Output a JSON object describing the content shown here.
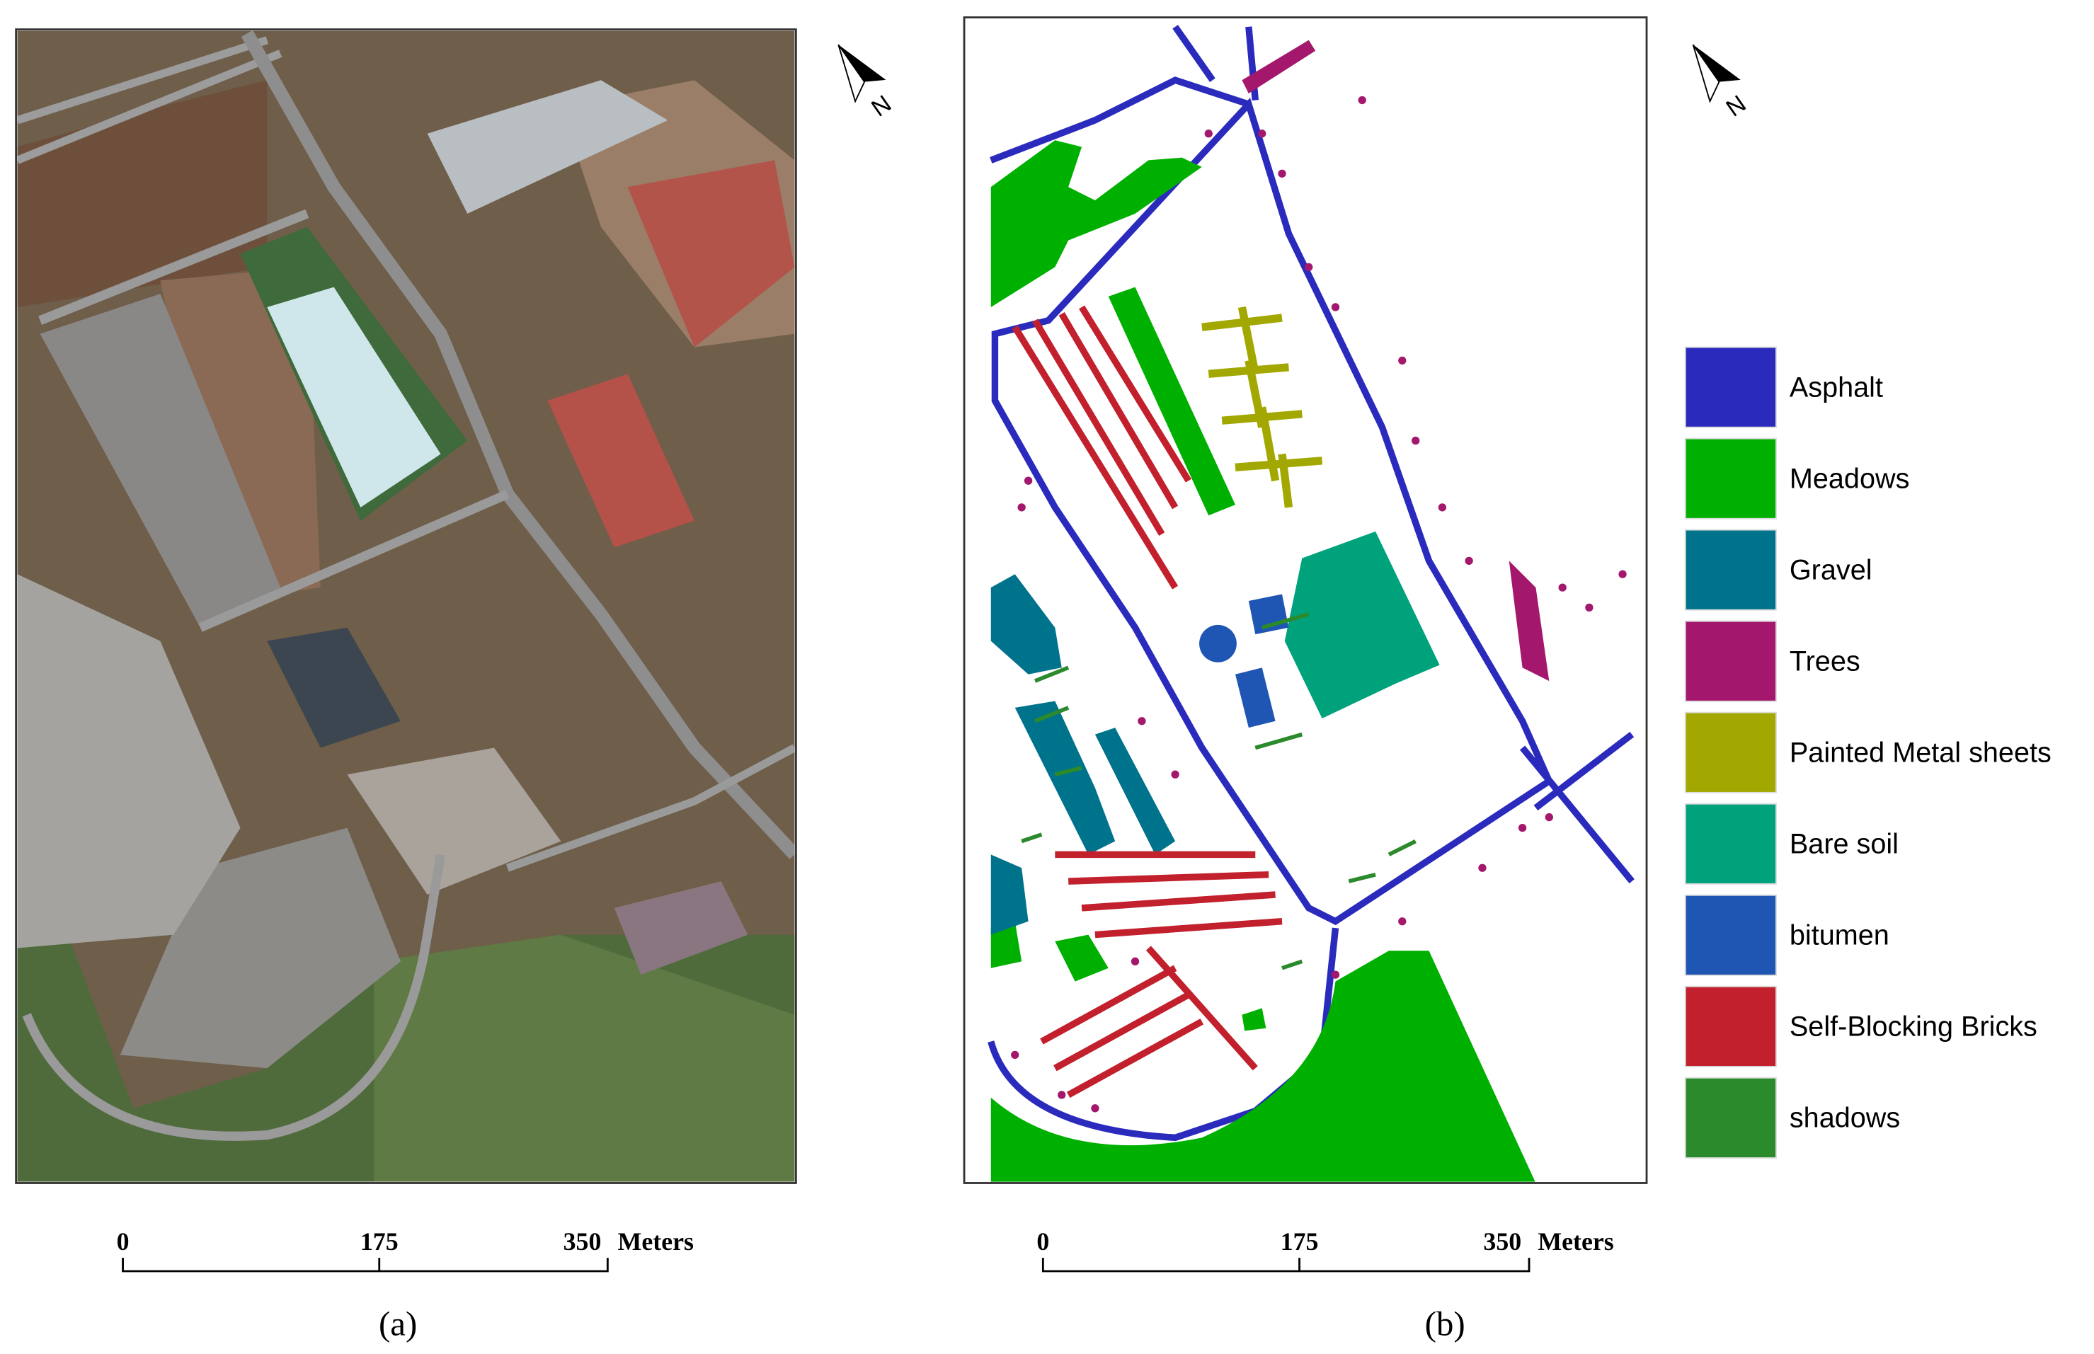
{
  "panels": [
    {
      "caption": "(a)",
      "scale_labels": [
        "0",
        "175",
        "350"
      ],
      "scale_unit": "Meters",
      "north": "N"
    },
    {
      "caption": "(b)",
      "scale_labels": [
        "0",
        "175",
        "350"
      ],
      "scale_unit": "Meters",
      "north": "N"
    }
  ],
  "legend": [
    {
      "name": "Asphalt",
      "color": "#2a2abd"
    },
    {
      "name": "Meadows",
      "color": "#00b000"
    },
    {
      "name": "Gravel",
      "color": "#00738c"
    },
    {
      "name": "Trees",
      "color": "#a3186c"
    },
    {
      "name": "Painted Metal sheets",
      "color": "#a3a800"
    },
    {
      "name": "Bare soil",
      "color": "#00a27c"
    },
    {
      "name": "bitumen",
      "color": "#1f55b3"
    },
    {
      "name": "Self-Blocking Bricks",
      "color": "#c1202c"
    },
    {
      "name": "shadows",
      "color": "#2b8a2b"
    }
  ]
}
